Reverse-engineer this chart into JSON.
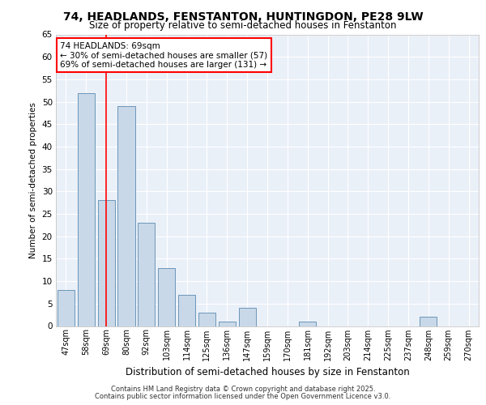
{
  "title1": "74, HEADLANDS, FENSTANTON, HUNTINGDON, PE28 9LW",
  "title2": "Size of property relative to semi-detached houses in Fenstanton",
  "xlabel": "Distribution of semi-detached houses by size in Fenstanton",
  "ylabel": "Number of semi-detached properties",
  "categories": [
    "47sqm",
    "58sqm",
    "69sqm",
    "80sqm",
    "92sqm",
    "103sqm",
    "114sqm",
    "125sqm",
    "136sqm",
    "147sqm",
    "159sqm",
    "170sqm",
    "181sqm",
    "192sqm",
    "203sqm",
    "214sqm",
    "225sqm",
    "237sqm",
    "248sqm",
    "259sqm",
    "270sqm"
  ],
  "values": [
    8,
    52,
    28,
    49,
    23,
    13,
    7,
    3,
    1,
    4,
    0,
    0,
    1,
    0,
    0,
    0,
    0,
    0,
    2,
    0,
    0
  ],
  "bar_color": "#c8d8e8",
  "bar_edge_color": "#5a8ab0",
  "highlight_index": 2,
  "annotation_text": "74 HEADLANDS: 69sqm\n← 30% of semi-detached houses are smaller (57)\n69% of semi-detached houses are larger (131) →",
  "ylim": [
    0,
    65
  ],
  "yticks": [
    0,
    5,
    10,
    15,
    20,
    25,
    30,
    35,
    40,
    45,
    50,
    55,
    60,
    65
  ],
  "bg_color": "#eaf0f8",
  "grid_color": "#ffffff",
  "footer1": "Contains HM Land Registry data © Crown copyright and database right 2025.",
  "footer2": "Contains public sector information licensed under the Open Government Licence v3.0."
}
